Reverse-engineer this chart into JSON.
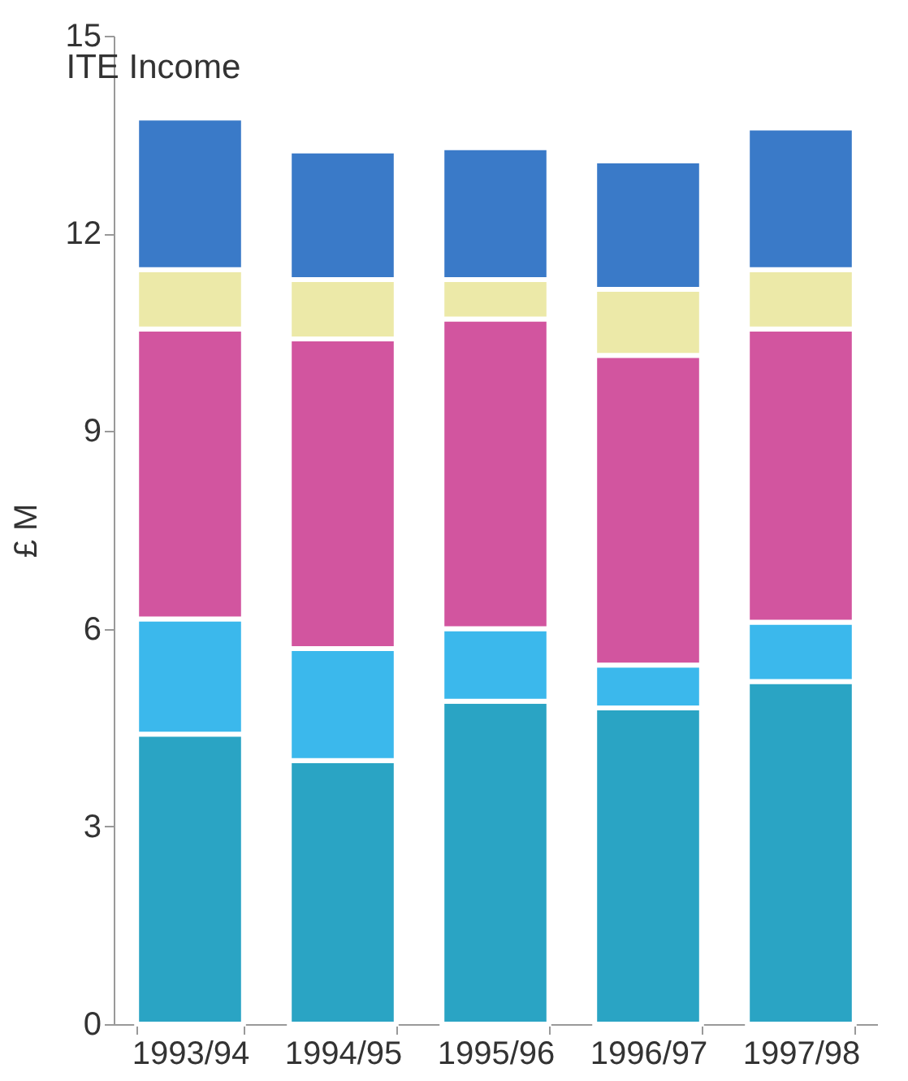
{
  "chart_data": {
    "type": "bar",
    "title": "ITE Income",
    "ylabel": "£ M",
    "stacked": true,
    "categories": [
      "1993/94",
      "1994/95",
      "1995/96",
      "1996/97",
      "1997/98"
    ],
    "series": [
      {
        "color": "#2aa4c4",
        "values": [
          4.4,
          4.0,
          4.9,
          4.8,
          5.2
        ]
      },
      {
        "color": "#3bb8ec",
        "values": [
          1.75,
          1.7,
          1.1,
          0.65,
          0.9
        ]
      },
      {
        "color": "#d2559f",
        "values": [
          4.4,
          4.7,
          4.7,
          4.7,
          4.45
        ]
      },
      {
        "color": "#ece9a8",
        "values": [
          0.9,
          0.9,
          0.6,
          1.0,
          0.9
        ]
      },
      {
        "color": "#3a7ac8",
        "values": [
          2.3,
          1.95,
          2.0,
          1.95,
          2.15
        ]
      }
    ],
    "ylim": [
      0,
      15
    ],
    "yticks": [
      0,
      3,
      6,
      9,
      12,
      15
    ],
    "grid": false
  }
}
